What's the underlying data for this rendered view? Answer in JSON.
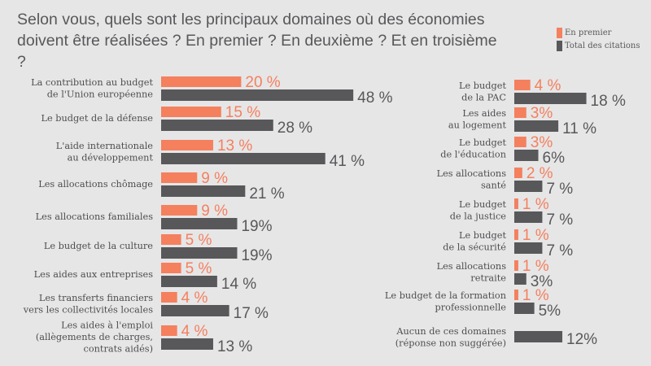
{
  "title_lines": [
    "Selon vous, quels sont les principaux domaines où des économies",
    "doivent être réalisées ? En premier ? En deuxième ? Et en troisième ?"
  ],
  "colors": {
    "premier": "#f4805e",
    "total": "#58585a",
    "background": "#e6e6e7"
  },
  "chart_data": {
    "type": "bar",
    "orientation": "horizontal",
    "title": "Selon vous, quels sont les principaux domaines où des économies doivent être réalisées ? En premier ? En deuxième ? Et en troisième ?",
    "legend": [
      "En premier",
      "Total des citations"
    ],
    "legend_position": "top-right",
    "unit": "%",
    "groups": [
      {
        "column": "left",
        "items": [
          {
            "label": [
              "La contribution au budget",
              "de l'Union européenne"
            ],
            "premier": 20,
            "premier_label": "20 %",
            "total": 48,
            "total_label": "48 %"
          },
          {
            "label": [
              "Le budget de la défense"
            ],
            "premier": 15,
            "premier_label": "15 %",
            "total": 28,
            "total_label": "28 %"
          },
          {
            "label": [
              "L'aide internationale",
              "au développement"
            ],
            "premier": 13,
            "premier_label": "13 %",
            "total": 41,
            "total_label": "41 %"
          },
          {
            "label": [
              "Les allocations chômage"
            ],
            "premier": 9,
            "premier_label": "9 %",
            "total": 21,
            "total_label": "21 %"
          },
          {
            "label": [
              "Les allocations familiales"
            ],
            "premier": 9,
            "premier_label": "9 %",
            "total": 19,
            "total_label": "19%"
          },
          {
            "label": [
              "Le budget de la culture"
            ],
            "premier": 5,
            "premier_label": "5 %",
            "total": 19,
            "total_label": "19%"
          },
          {
            "label": [
              "Les aides aux entreprises"
            ],
            "premier": 5,
            "premier_label": "5 %",
            "total": 14,
            "total_label": "14 %"
          },
          {
            "label": [
              "Les transferts financiers",
              "vers les collectivités locales"
            ],
            "premier": 4,
            "premier_label": "4 %",
            "total": 17,
            "total_label": "17 %"
          },
          {
            "label": [
              "Les aides à l'emploi",
              "(allègements de charges,",
              "contrats aidés)"
            ],
            "premier": 4,
            "premier_label": "4 %",
            "total": 13,
            "total_label": "13 %"
          }
        ]
      },
      {
        "column": "right",
        "items": [
          {
            "label": [
              "Le budget",
              "de la PAC"
            ],
            "premier": 4,
            "premier_label": "4 %",
            "total": 18,
            "total_label": "18 %"
          },
          {
            "label": [
              "Les aides",
              "au logement"
            ],
            "premier": 3,
            "premier_label": "3%",
            "total": 11,
            "total_label": "11 %"
          },
          {
            "label": [
              "Le budget",
              "de l'éducation"
            ],
            "premier": 3,
            "premier_label": "3%",
            "total": 6,
            "total_label": "6%"
          },
          {
            "label": [
              "Les allocations",
              "santé"
            ],
            "premier": 2,
            "premier_label": "2 %",
            "total": 7,
            "total_label": "7 %"
          },
          {
            "label": [
              "Le budget",
              "de la justice"
            ],
            "premier": 1,
            "premier_label": "1 %",
            "total": 7,
            "total_label": "7 %"
          },
          {
            "label": [
              "Le budget",
              "de la sécurité"
            ],
            "premier": 1,
            "premier_label": "1 %",
            "total": 7,
            "total_label": "7 %"
          },
          {
            "label": [
              "Les allocations",
              "retraite"
            ],
            "premier": 1,
            "premier_label": "1 %",
            "total": 3,
            "total_label": "3%"
          },
          {
            "label": [
              "Le budget de la formation",
              "professionnelle"
            ],
            "premier": 1,
            "premier_label": "1 %",
            "total": 5,
            "total_label": "5%"
          },
          {
            "label": [
              "Aucun de ces domaines",
              "(réponse non suggérée)"
            ],
            "premier": null,
            "premier_label": null,
            "total": 12,
            "total_label": "12%"
          }
        ]
      }
    ]
  }
}
